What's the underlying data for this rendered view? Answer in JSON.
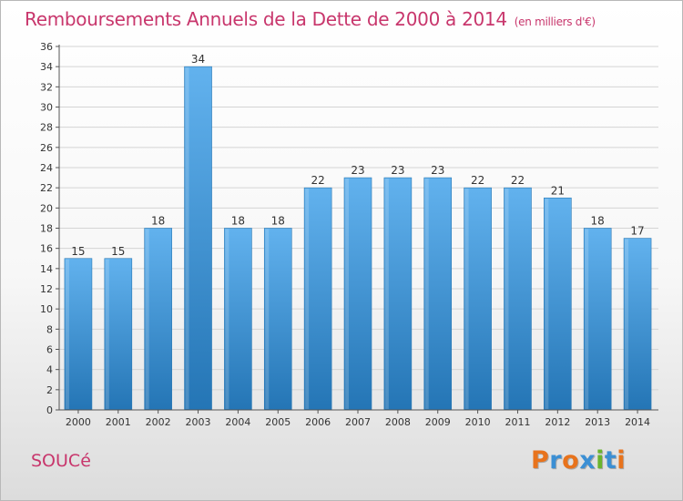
{
  "title": "Remboursements Annuels de la Dette de 2000 à 2014",
  "unit": "(en milliers d'€)",
  "commune": "SOUCé",
  "logo": {
    "text": "Proxiti",
    "letter_colors": [
      "#e8731c",
      "#3b8fd4",
      "#e8731c",
      "#3b8fd4",
      "#6ab42d",
      "#3b8fd4",
      "#e8731c"
    ]
  },
  "colors": {
    "title": "#c8366c",
    "bar_top": "#62b2ee",
    "bar_bottom": "#2475b5",
    "grid": "#d4d4d4",
    "axis": "#555555"
  },
  "chart_data": {
    "type": "bar",
    "title": "Remboursements Annuels de la Dette de 2000 à 2014",
    "categories": [
      "2000",
      "2001",
      "2002",
      "2003",
      "2004",
      "2005",
      "2006",
      "2007",
      "2008",
      "2009",
      "2010",
      "2011",
      "2012",
      "2013",
      "2014"
    ],
    "values": [
      15,
      15,
      18,
      34,
      18,
      18,
      22,
      23,
      23,
      23,
      22,
      22,
      21,
      18,
      17
    ],
    "data_labels": [
      "15",
      "15",
      "18",
      "34",
      "18",
      "18",
      "22",
      "23",
      "23",
      "23",
      "22",
      "22",
      "21",
      "18",
      "17"
    ],
    "ylim": [
      0,
      36
    ],
    "yticks": [
      "0",
      "2",
      "4",
      "6",
      "8",
      "10",
      "12",
      "14",
      "16",
      "18",
      "20",
      "22",
      "24",
      "26",
      "28",
      "30",
      "32",
      "34",
      "36"
    ],
    "grid": true,
    "legend": "none"
  }
}
